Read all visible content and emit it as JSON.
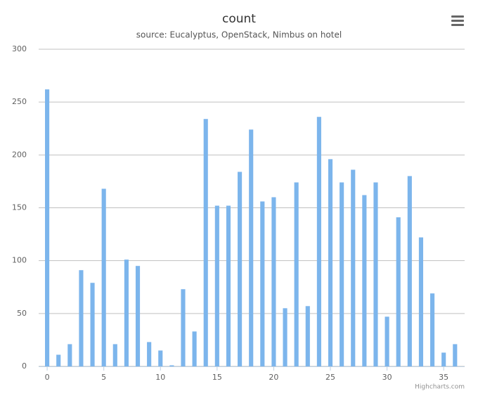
{
  "chart_data": {
    "type": "bar",
    "title": "count",
    "subtitle": "source: Eucalyptus, OpenStack, Nimbus on hotel",
    "credits": "Highcharts.com",
    "x": [
      0,
      1,
      2,
      3,
      4,
      5,
      6,
      7,
      8,
      9,
      10,
      11,
      12,
      13,
      14,
      15,
      16,
      17,
      18,
      19,
      20,
      21,
      22,
      23,
      24,
      25,
      26,
      27,
      28,
      29,
      30,
      31,
      32,
      33,
      34,
      35,
      36
    ],
    "values": [
      262,
      11,
      21,
      91,
      79,
      168,
      21,
      101,
      95,
      23,
      15,
      1,
      73,
      33,
      234,
      152,
      152,
      184,
      224,
      156,
      160,
      55,
      174,
      57,
      236,
      196,
      174,
      186,
      162,
      174,
      47,
      141,
      180,
      122,
      69,
      13,
      21
    ],
    "color": "#7cb5ec",
    "xlim": [
      -0.75,
      36.85
    ],
    "xticks": [
      0,
      5,
      10,
      15,
      20,
      25,
      30,
      35
    ],
    "ylim": [
      0,
      300
    ],
    "yticks": [
      0,
      50,
      100,
      150,
      200,
      250,
      300
    ],
    "grid": true
  }
}
